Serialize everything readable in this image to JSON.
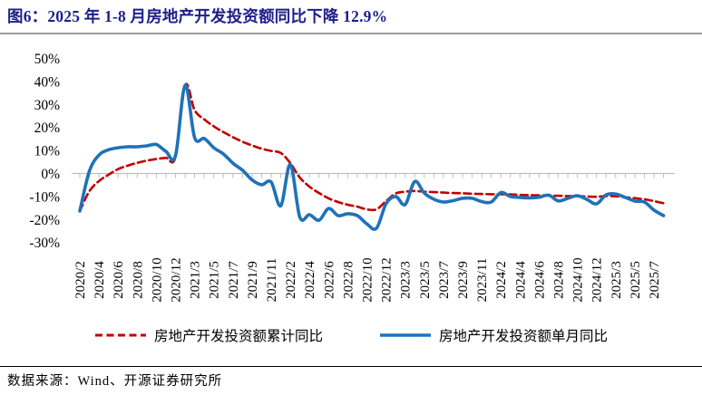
{
  "page": {
    "title": "图6：2025 年 1-8 月房地产开发投资额同比下降 12.9%",
    "source": "数据来源：Wind、开源证券研究所"
  },
  "colors": {
    "title": "#1e1e8c",
    "axis": "#bfbfbf",
    "cumulative_red": "#c00000",
    "monthly_blue": "#1f72b8"
  },
  "legend": {
    "cumulative_label": "房地产开发投资额累计同比",
    "monthly_label": "房地产开发投资额单月同比"
  },
  "chart_data": {
    "type": "line",
    "title": "2025 年 1-8 月房地产开发投资额同比下降 12.9%",
    "xlabel": "",
    "ylabel": "",
    "grid": "zero-line-only",
    "legend_position": "bottom",
    "axis_color": "#bfbfbf",
    "y_axis": {
      "min": -30,
      "max": 50,
      "tick_values": [
        50,
        40,
        30,
        20,
        10,
        0,
        -10,
        -20,
        -30
      ],
      "tick_labels": [
        "50%",
        "40%",
        "30%",
        "20%",
        "10%",
        "0%",
        "-10%",
        "-20%",
        "-30%"
      ]
    },
    "x": [
      "2020/2",
      "2020/3",
      "2020/4",
      "2020/5",
      "2020/6",
      "2020/7",
      "2020/8",
      "2020/9",
      "2020/10",
      "2020/11",
      "2020/12",
      "2021/2",
      "2021/3",
      "2021/4",
      "2021/5",
      "2021/6",
      "2021/7",
      "2021/8",
      "2021/9",
      "2021/10",
      "2021/11",
      "2021/12",
      "2022/2",
      "2022/3",
      "2022/4",
      "2022/5",
      "2022/6",
      "2022/7",
      "2022/8",
      "2022/9",
      "2022/10",
      "2022/11",
      "2022/12",
      "2023/2",
      "2023/3",
      "2023/4",
      "2023/5",
      "2023/6",
      "2023/7",
      "2023/8",
      "2023/9",
      "2023/10",
      "2023/11",
      "2023/12",
      "2024/2",
      "2024/3",
      "2024/4",
      "2024/5",
      "2024/6",
      "2024/7",
      "2024/8",
      "2024/9",
      "2024/10",
      "2024/11",
      "2024/12",
      "2025/2",
      "2025/3",
      "2025/4",
      "2025/5",
      "2025/6",
      "2025/7",
      "2025/8"
    ],
    "x_tick_labels": [
      "2020/2",
      "2020/4",
      "2020/6",
      "2020/8",
      "2020/10",
      "2020/12",
      "2021/3",
      "2021/5",
      "2021/7",
      "2021/9",
      "2021/11",
      "2022/2",
      "2022/4",
      "2022/6",
      "2022/8",
      "2022/10",
      "2022/12",
      "2023/3",
      "2023/5",
      "2023/7",
      "2023/9",
      "2023/11",
      "2024/2",
      "2024/4",
      "2024/6",
      "2024/8",
      "2024/10",
      "2024/12",
      "2025/3",
      "2025/5",
      "2025/7"
    ],
    "series": [
      {
        "name": "房地产开发投资额累计同比",
        "style": "dashed",
        "color": "#c00000",
        "values": [
          -16.3,
          -7.7,
          -3.3,
          -0.5,
          1.9,
          3.4,
          4.6,
          5.6,
          6.3,
          6.8,
          7.2,
          38.3,
          27.5,
          23.5,
          20.5,
          18.0,
          15.8,
          13.8,
          12.2,
          10.8,
          9.8,
          8.9,
          4.5,
          -1.8,
          -5.7,
          -8.5,
          -10.8,
          -12.4,
          -13.6,
          -14.4,
          -15.6,
          -15.6,
          -12.0,
          -8.7,
          -7.9,
          -7.6,
          -7.9,
          -8.1,
          -8.3,
          -8.5,
          -8.6,
          -8.8,
          -8.9,
          -9.0,
          -9.0,
          -9.1,
          -9.3,
          -9.4,
          -9.5,
          -9.6,
          -9.7,
          -9.8,
          -9.9,
          -10.0,
          -10.1,
          -9.8,
          -9.9,
          -10.3,
          -10.7,
          -11.2,
          -12.0,
          -12.9
        ]
      },
      {
        "name": "房地产开发投资额单月同比",
        "style": "solid",
        "color": "#1f72b8",
        "values": [
          -16.3,
          1.0,
          8.0,
          10.3,
          11.2,
          11.6,
          11.6,
          12.0,
          12.6,
          9.6,
          7.7,
          38.3,
          15.6,
          15.2,
          11.2,
          8.5,
          4.5,
          1.4,
          -2.8,
          -4.9,
          -3.7,
          -14.0,
          3.9,
          -19.0,
          -17.9,
          -20.3,
          -15.2,
          -18.3,
          -17.5,
          -18.3,
          -21.9,
          -23.8,
          -13.2,
          -10.0,
          -13.5,
          -3.5,
          -8.5,
          -11.2,
          -12.4,
          -11.8,
          -10.8,
          -10.8,
          -12.2,
          -12.4,
          -8.3,
          -10.0,
          -10.4,
          -10.6,
          -10.3,
          -9.4,
          -11.9,
          -10.8,
          -9.7,
          -11.3,
          -13.2,
          -9.3,
          -8.9,
          -10.4,
          -12.0,
          -12.4,
          -15.9,
          -18.3
        ]
      }
    ]
  }
}
